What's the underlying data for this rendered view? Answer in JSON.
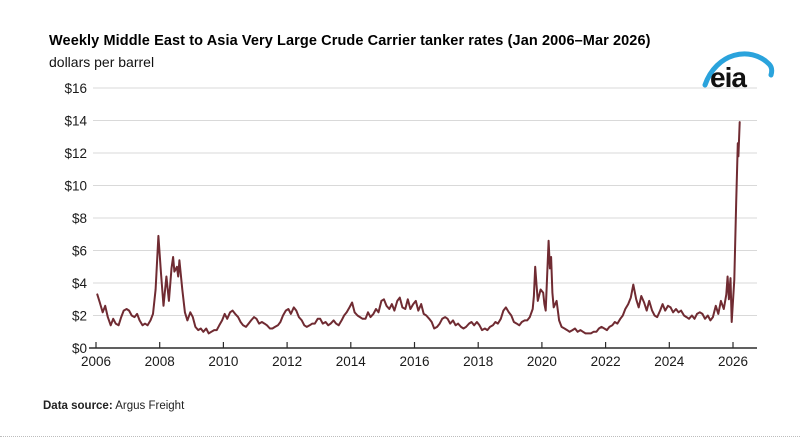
{
  "header": {
    "title": "Weekly Middle East to Asia Very Large Crude Carrier tanker rates (Jan 2006–Mar 2026)",
    "subtitle": "dollars per barrel"
  },
  "logo": {
    "text": "eia",
    "text_color": "#111111",
    "arc_color": "#2aa3dc"
  },
  "footer": {
    "label": "Data source:",
    "source": " Argus Freight"
  },
  "chart_data": {
    "type": "line",
    "title": "Weekly Middle East to Asia Very Large Crude Carrier tanker rates (Jan 2006–Mar 2026)",
    "xlabel": "",
    "ylabel": "dollars per barrel",
    "xlim": [
      2006,
      2026.8
    ],
    "ylim": [
      0,
      16
    ],
    "x_ticks": [
      2006,
      2008,
      2010,
      2012,
      2014,
      2016,
      2018,
      2020,
      2022,
      2024,
      2026
    ],
    "y_ticks": [
      0,
      2,
      4,
      6,
      8,
      10,
      12,
      14,
      16
    ],
    "y_tick_prefix": "$",
    "grid": "horizontal",
    "legend": "none",
    "line_color": "#702b32",
    "grid_color": "#d9d9d9",
    "axis_color": "#2b2b2b",
    "series": [
      {
        "name": "VLCC Middle East to Asia tanker rate (dollars per barrel)",
        "points": [
          [
            2006.04,
            3.3
          ],
          [
            2006.12,
            2.8
          ],
          [
            2006.21,
            2.2
          ],
          [
            2006.29,
            2.6
          ],
          [
            2006.37,
            1.9
          ],
          [
            2006.46,
            1.4
          ],
          [
            2006.54,
            1.8
          ],
          [
            2006.62,
            1.5
          ],
          [
            2006.71,
            1.4
          ],
          [
            2006.79,
            1.9
          ],
          [
            2006.87,
            2.3
          ],
          [
            2006.96,
            2.4
          ],
          [
            2007.04,
            2.3
          ],
          [
            2007.12,
            2.0
          ],
          [
            2007.21,
            1.9
          ],
          [
            2007.29,
            2.1
          ],
          [
            2007.37,
            1.7
          ],
          [
            2007.46,
            1.4
          ],
          [
            2007.54,
            1.5
          ],
          [
            2007.62,
            1.4
          ],
          [
            2007.71,
            1.7
          ],
          [
            2007.79,
            2.1
          ],
          [
            2007.87,
            3.6
          ],
          [
            2007.96,
            6.9
          ],
          [
            2008.04,
            4.6
          ],
          [
            2008.12,
            2.6
          ],
          [
            2008.21,
            4.4
          ],
          [
            2008.29,
            2.9
          ],
          [
            2008.37,
            4.9
          ],
          [
            2008.42,
            5.6
          ],
          [
            2008.46,
            4.7
          ],
          [
            2008.54,
            5.0
          ],
          [
            2008.58,
            4.4
          ],
          [
            2008.62,
            5.4
          ],
          [
            2008.71,
            3.6
          ],
          [
            2008.79,
            2.2
          ],
          [
            2008.87,
            1.7
          ],
          [
            2008.96,
            2.2
          ],
          [
            2009.04,
            1.9
          ],
          [
            2009.12,
            1.3
          ],
          [
            2009.21,
            1.1
          ],
          [
            2009.29,
            1.2
          ],
          [
            2009.37,
            1.0
          ],
          [
            2009.46,
            1.2
          ],
          [
            2009.54,
            0.9
          ],
          [
            2009.62,
            1.0
          ],
          [
            2009.71,
            1.1
          ],
          [
            2009.79,
            1.1
          ],
          [
            2009.87,
            1.4
          ],
          [
            2009.96,
            1.7
          ],
          [
            2010.04,
            2.1
          ],
          [
            2010.12,
            1.8
          ],
          [
            2010.21,
            2.2
          ],
          [
            2010.29,
            2.3
          ],
          [
            2010.37,
            2.1
          ],
          [
            2010.46,
            1.9
          ],
          [
            2010.54,
            1.6
          ],
          [
            2010.62,
            1.4
          ],
          [
            2010.71,
            1.3
          ],
          [
            2010.79,
            1.5
          ],
          [
            2010.87,
            1.7
          ],
          [
            2010.96,
            1.9
          ],
          [
            2011.04,
            1.8
          ],
          [
            2011.12,
            1.5
          ],
          [
            2011.21,
            1.6
          ],
          [
            2011.29,
            1.5
          ],
          [
            2011.37,
            1.4
          ],
          [
            2011.46,
            1.2
          ],
          [
            2011.54,
            1.2
          ],
          [
            2011.62,
            1.3
          ],
          [
            2011.71,
            1.4
          ],
          [
            2011.79,
            1.6
          ],
          [
            2011.87,
            2.0
          ],
          [
            2011.96,
            2.3
          ],
          [
            2012.04,
            2.4
          ],
          [
            2012.12,
            2.1
          ],
          [
            2012.21,
            2.5
          ],
          [
            2012.29,
            2.3
          ],
          [
            2012.37,
            1.9
          ],
          [
            2012.46,
            1.7
          ],
          [
            2012.54,
            1.4
          ],
          [
            2012.62,
            1.3
          ],
          [
            2012.71,
            1.4
          ],
          [
            2012.79,
            1.5
          ],
          [
            2012.87,
            1.5
          ],
          [
            2012.96,
            1.8
          ],
          [
            2013.04,
            1.8
          ],
          [
            2013.12,
            1.5
          ],
          [
            2013.21,
            1.6
          ],
          [
            2013.29,
            1.4
          ],
          [
            2013.37,
            1.5
          ],
          [
            2013.46,
            1.7
          ],
          [
            2013.54,
            1.5
          ],
          [
            2013.62,
            1.4
          ],
          [
            2013.71,
            1.7
          ],
          [
            2013.79,
            2.0
          ],
          [
            2013.87,
            2.2
          ],
          [
            2013.96,
            2.5
          ],
          [
            2014.04,
            2.8
          ],
          [
            2014.12,
            2.2
          ],
          [
            2014.21,
            2.0
          ],
          [
            2014.29,
            1.9
          ],
          [
            2014.37,
            1.8
          ],
          [
            2014.46,
            1.8
          ],
          [
            2014.54,
            2.2
          ],
          [
            2014.62,
            1.9
          ],
          [
            2014.71,
            2.1
          ],
          [
            2014.79,
            2.4
          ],
          [
            2014.87,
            2.2
          ],
          [
            2014.96,
            2.9
          ],
          [
            2015.04,
            3.0
          ],
          [
            2015.12,
            2.6
          ],
          [
            2015.21,
            2.4
          ],
          [
            2015.29,
            2.7
          ],
          [
            2015.37,
            2.3
          ],
          [
            2015.46,
            2.9
          ],
          [
            2015.54,
            3.1
          ],
          [
            2015.62,
            2.5
          ],
          [
            2015.71,
            2.4
          ],
          [
            2015.79,
            3.0
          ],
          [
            2015.87,
            2.4
          ],
          [
            2015.96,
            2.7
          ],
          [
            2016.04,
            2.9
          ],
          [
            2016.12,
            2.3
          ],
          [
            2016.21,
            2.7
          ],
          [
            2016.29,
            2.1
          ],
          [
            2016.37,
            2.0
          ],
          [
            2016.46,
            1.8
          ],
          [
            2016.54,
            1.6
          ],
          [
            2016.62,
            1.2
          ],
          [
            2016.71,
            1.3
          ],
          [
            2016.79,
            1.5
          ],
          [
            2016.87,
            1.8
          ],
          [
            2016.96,
            1.9
          ],
          [
            2017.04,
            1.8
          ],
          [
            2017.12,
            1.5
          ],
          [
            2017.21,
            1.7
          ],
          [
            2017.29,
            1.4
          ],
          [
            2017.37,
            1.5
          ],
          [
            2017.46,
            1.3
          ],
          [
            2017.54,
            1.2
          ],
          [
            2017.62,
            1.3
          ],
          [
            2017.71,
            1.5
          ],
          [
            2017.79,
            1.6
          ],
          [
            2017.87,
            1.4
          ],
          [
            2017.96,
            1.6
          ],
          [
            2018.04,
            1.4
          ],
          [
            2018.12,
            1.1
          ],
          [
            2018.21,
            1.2
          ],
          [
            2018.29,
            1.1
          ],
          [
            2018.37,
            1.3
          ],
          [
            2018.46,
            1.4
          ],
          [
            2018.54,
            1.6
          ],
          [
            2018.62,
            1.5
          ],
          [
            2018.71,
            1.8
          ],
          [
            2018.79,
            2.3
          ],
          [
            2018.87,
            2.5
          ],
          [
            2018.96,
            2.2
          ],
          [
            2019.04,
            2.0
          ],
          [
            2019.12,
            1.6
          ],
          [
            2019.21,
            1.5
          ],
          [
            2019.29,
            1.4
          ],
          [
            2019.37,
            1.6
          ],
          [
            2019.46,
            1.7
          ],
          [
            2019.54,
            1.7
          ],
          [
            2019.62,
            1.9
          ],
          [
            2019.71,
            2.4
          ],
          [
            2019.75,
            3.2
          ],
          [
            2019.79,
            5.0
          ],
          [
            2019.83,
            3.9
          ],
          [
            2019.87,
            2.9
          ],
          [
            2019.96,
            3.6
          ],
          [
            2020.04,
            3.4
          ],
          [
            2020.08,
            2.7
          ],
          [
            2020.12,
            2.3
          ],
          [
            2020.21,
            6.6
          ],
          [
            2020.25,
            4.9
          ],
          [
            2020.29,
            5.6
          ],
          [
            2020.33,
            3.4
          ],
          [
            2020.37,
            2.5
          ],
          [
            2020.46,
            2.9
          ],
          [
            2020.54,
            1.7
          ],
          [
            2020.62,
            1.3
          ],
          [
            2020.71,
            1.2
          ],
          [
            2020.79,
            1.1
          ],
          [
            2020.87,
            1.0
          ],
          [
            2020.96,
            1.1
          ],
          [
            2021.04,
            1.2
          ],
          [
            2021.12,
            1.0
          ],
          [
            2021.21,
            1.1
          ],
          [
            2021.29,
            1.0
          ],
          [
            2021.37,
            0.9
          ],
          [
            2021.46,
            0.9
          ],
          [
            2021.54,
            0.9
          ],
          [
            2021.62,
            1.0
          ],
          [
            2021.71,
            1.0
          ],
          [
            2021.79,
            1.2
          ],
          [
            2021.87,
            1.3
          ],
          [
            2021.96,
            1.2
          ],
          [
            2022.04,
            1.1
          ],
          [
            2022.12,
            1.3
          ],
          [
            2022.21,
            1.4
          ],
          [
            2022.29,
            1.6
          ],
          [
            2022.37,
            1.5
          ],
          [
            2022.46,
            1.8
          ],
          [
            2022.54,
            2.0
          ],
          [
            2022.62,
            2.4
          ],
          [
            2022.71,
            2.7
          ],
          [
            2022.79,
            3.1
          ],
          [
            2022.87,
            3.9
          ],
          [
            2022.96,
            3.0
          ],
          [
            2023.04,
            2.5
          ],
          [
            2023.12,
            3.2
          ],
          [
            2023.21,
            2.8
          ],
          [
            2023.29,
            2.3
          ],
          [
            2023.37,
            2.9
          ],
          [
            2023.46,
            2.3
          ],
          [
            2023.54,
            2.0
          ],
          [
            2023.62,
            1.9
          ],
          [
            2023.71,
            2.3
          ],
          [
            2023.79,
            2.7
          ],
          [
            2023.87,
            2.3
          ],
          [
            2023.96,
            2.6
          ],
          [
            2024.04,
            2.5
          ],
          [
            2024.12,
            2.2
          ],
          [
            2024.21,
            2.4
          ],
          [
            2024.29,
            2.2
          ],
          [
            2024.37,
            2.3
          ],
          [
            2024.46,
            2.0
          ],
          [
            2024.54,
            1.9
          ],
          [
            2024.62,
            1.8
          ],
          [
            2024.71,
            2.0
          ],
          [
            2024.79,
            1.8
          ],
          [
            2024.87,
            2.1
          ],
          [
            2024.96,
            2.2
          ],
          [
            2025.04,
            2.1
          ],
          [
            2025.12,
            1.8
          ],
          [
            2025.21,
            2.0
          ],
          [
            2025.29,
            1.7
          ],
          [
            2025.37,
            1.9
          ],
          [
            2025.46,
            2.6
          ],
          [
            2025.54,
            2.1
          ],
          [
            2025.62,
            2.9
          ],
          [
            2025.71,
            2.4
          ],
          [
            2025.79,
            3.3
          ],
          [
            2025.83,
            4.4
          ],
          [
            2025.87,
            3.0
          ],
          [
            2025.92,
            4.3
          ],
          [
            2025.96,
            1.6
          ],
          [
            2026.04,
            4.2
          ],
          [
            2026.1,
            9.0
          ],
          [
            2026.15,
            12.6
          ],
          [
            2026.17,
            11.8
          ],
          [
            2026.21,
            13.9
          ]
        ]
      }
    ]
  }
}
